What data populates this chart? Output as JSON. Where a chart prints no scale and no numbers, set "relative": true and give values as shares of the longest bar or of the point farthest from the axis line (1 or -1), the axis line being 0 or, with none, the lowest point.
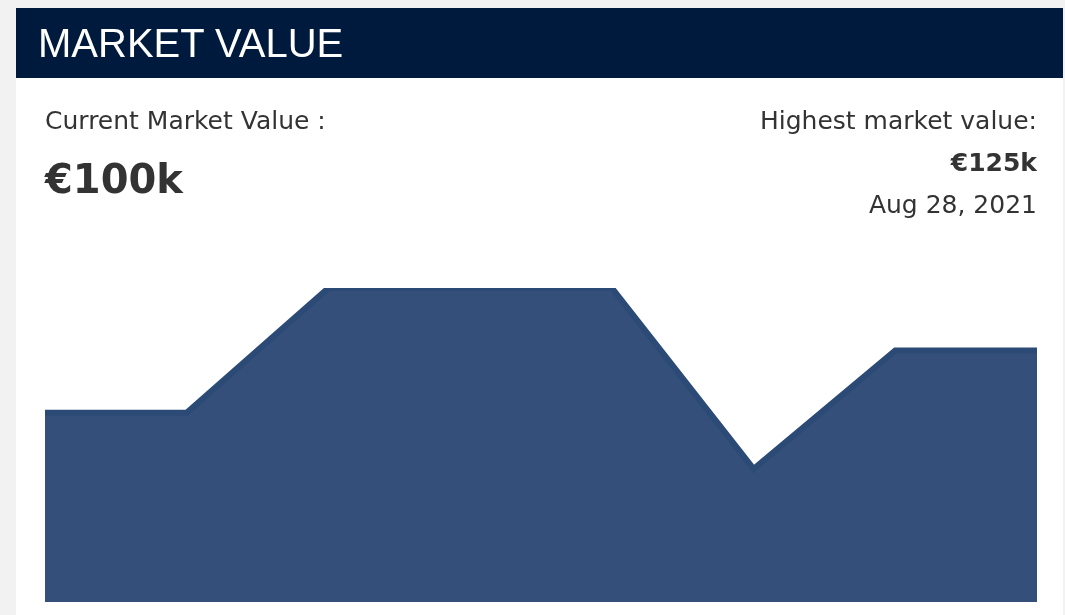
{
  "chart_data": {
    "type": "area",
    "title": "MARKET VALUE",
    "relative": true,
    "annotations": [
      "Current Market Value :",
      "€100k",
      "Highest market value:",
      "€125k",
      "Aug 28, 2021"
    ],
    "categories": [
      null,
      null,
      null,
      null,
      null,
      null,
      null,
      null
    ],
    "series": [
      {
        "color": "#34507a",
        "values": [
          0.6,
          0.6,
          1,
          1,
          1,
          0.42,
          0.8,
          0.8
        ]
      }
    ],
    "legend": false
  }
}
